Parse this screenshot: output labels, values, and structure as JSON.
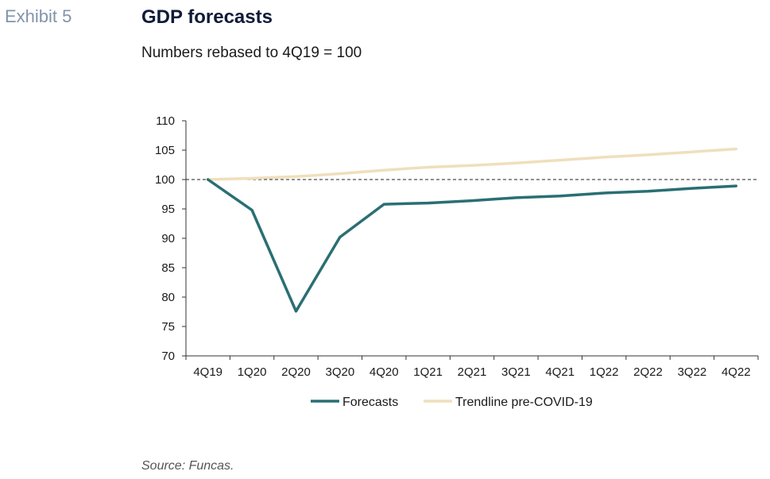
{
  "exhibit_label": "Exhibit 5",
  "title": "GDP forecasts",
  "subtitle": "Numbers rebased to 4Q19 = 100",
  "source": "Source: Funcas.",
  "chart_data": {
    "type": "line",
    "categories": [
      "4Q19",
      "1Q20",
      "2Q20",
      "3Q20",
      "4Q20",
      "1Q21",
      "2Q21",
      "3Q21",
      "4Q21",
      "1Q22",
      "2Q22",
      "3Q22",
      "4Q22"
    ],
    "series": [
      {
        "name": "Forecasts",
        "color": "#2a6f73",
        "values": [
          100,
          94.8,
          77.6,
          90.2,
          95.8,
          96.0,
          96.4,
          96.9,
          97.2,
          97.7,
          98.0,
          98.5,
          98.9
        ]
      },
      {
        "name": "Trendline pre-COVID-19",
        "color": "#efdfbc",
        "values": [
          100,
          100.2,
          100.5,
          101.0,
          101.6,
          102.1,
          102.4,
          102.8,
          103.3,
          103.8,
          104.2,
          104.7,
          105.2
        ]
      }
    ],
    "reference_line": {
      "value": 100,
      "style": "dashed"
    },
    "yticks": [
      "110",
      "105",
      "100",
      "95",
      "90",
      "85",
      "80",
      "75",
      "70"
    ],
    "ylim": [
      70,
      110
    ],
    "xlabel": "",
    "ylabel": "",
    "grid": false,
    "legend_position": "bottom"
  }
}
